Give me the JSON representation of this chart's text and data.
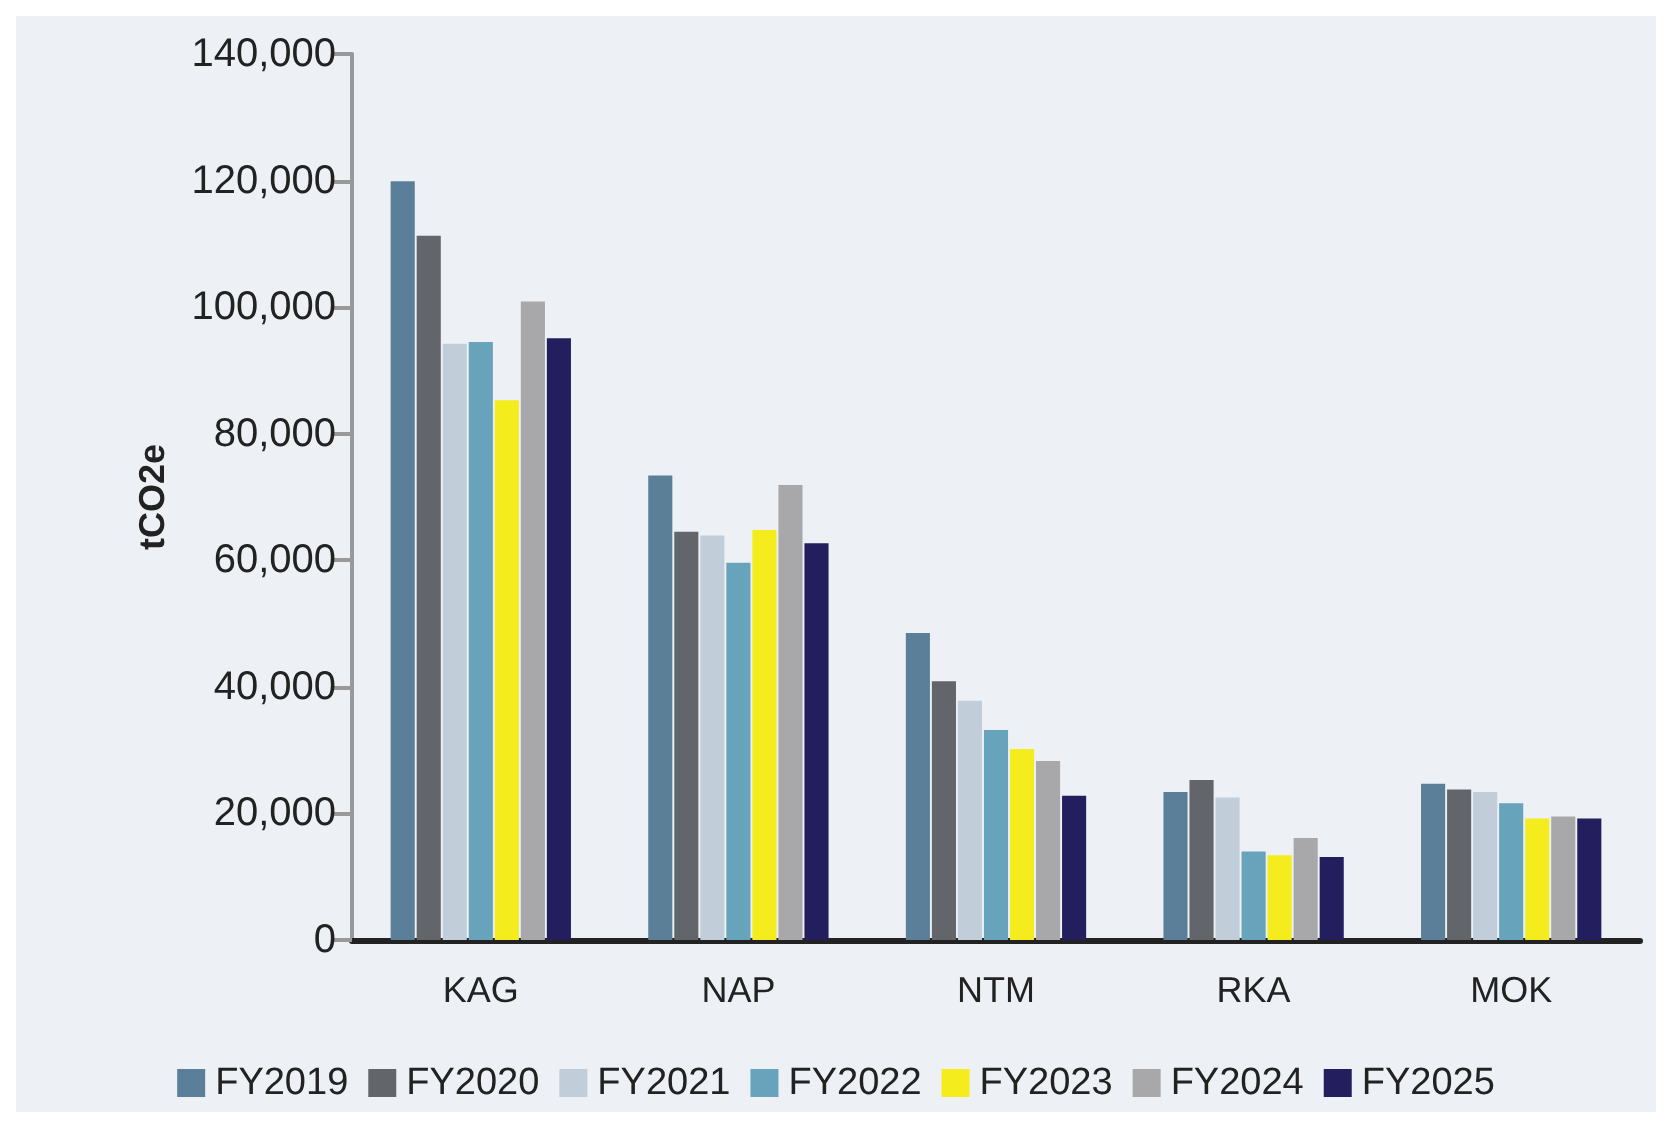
{
  "chart_data": {
    "type": "bar",
    "ylabel": "tCO2e",
    "categories": [
      "KAG",
      "NAP",
      "NTM",
      "RKA",
      "MOK"
    ],
    "series": [
      {
        "name": "FY2019",
        "color": "#5b7f98",
        "values": [
          119900,
          73400,
          48500,
          23400,
          24700
        ]
      },
      {
        "name": "FY2020",
        "color": "#62666b",
        "values": [
          111300,
          64500,
          40900,
          25300,
          23800
        ]
      },
      {
        "name": "FY2021",
        "color": "#c1cdd9",
        "values": [
          94200,
          63900,
          37800,
          22500,
          23400
        ]
      },
      {
        "name": "FY2022",
        "color": "#67a3ba",
        "values": [
          94500,
          59600,
          33200,
          14000,
          21600
        ]
      },
      {
        "name": "FY2023",
        "color": "#f5ec1e",
        "values": [
          85300,
          64800,
          30200,
          13400,
          19200
        ]
      },
      {
        "name": "FY2024",
        "color": "#a8a8aa",
        "values": [
          100900,
          71900,
          28300,
          16100,
          19500
        ]
      },
      {
        "name": "FY2025",
        "color": "#231f5e",
        "values": [
          95100,
          62700,
          22800,
          13100,
          19200
        ]
      }
    ],
    "ylim": [
      0,
      140000
    ],
    "yticks": [
      0,
      {
        "value": 20000,
        "label": "20,000"
      },
      {
        "value": 40000,
        "label": "40,000"
      },
      {
        "value": 60000,
        "label": "60,000"
      },
      {
        "value": 80000,
        "label": "80,000"
      },
      {
        "value": 100000,
        "label": "100,000"
      },
      {
        "value": 120000,
        "label": "120,000"
      },
      {
        "value": 140000,
        "label": "140,000"
      }
    ],
    "grid": false,
    "legend": "bottom"
  }
}
